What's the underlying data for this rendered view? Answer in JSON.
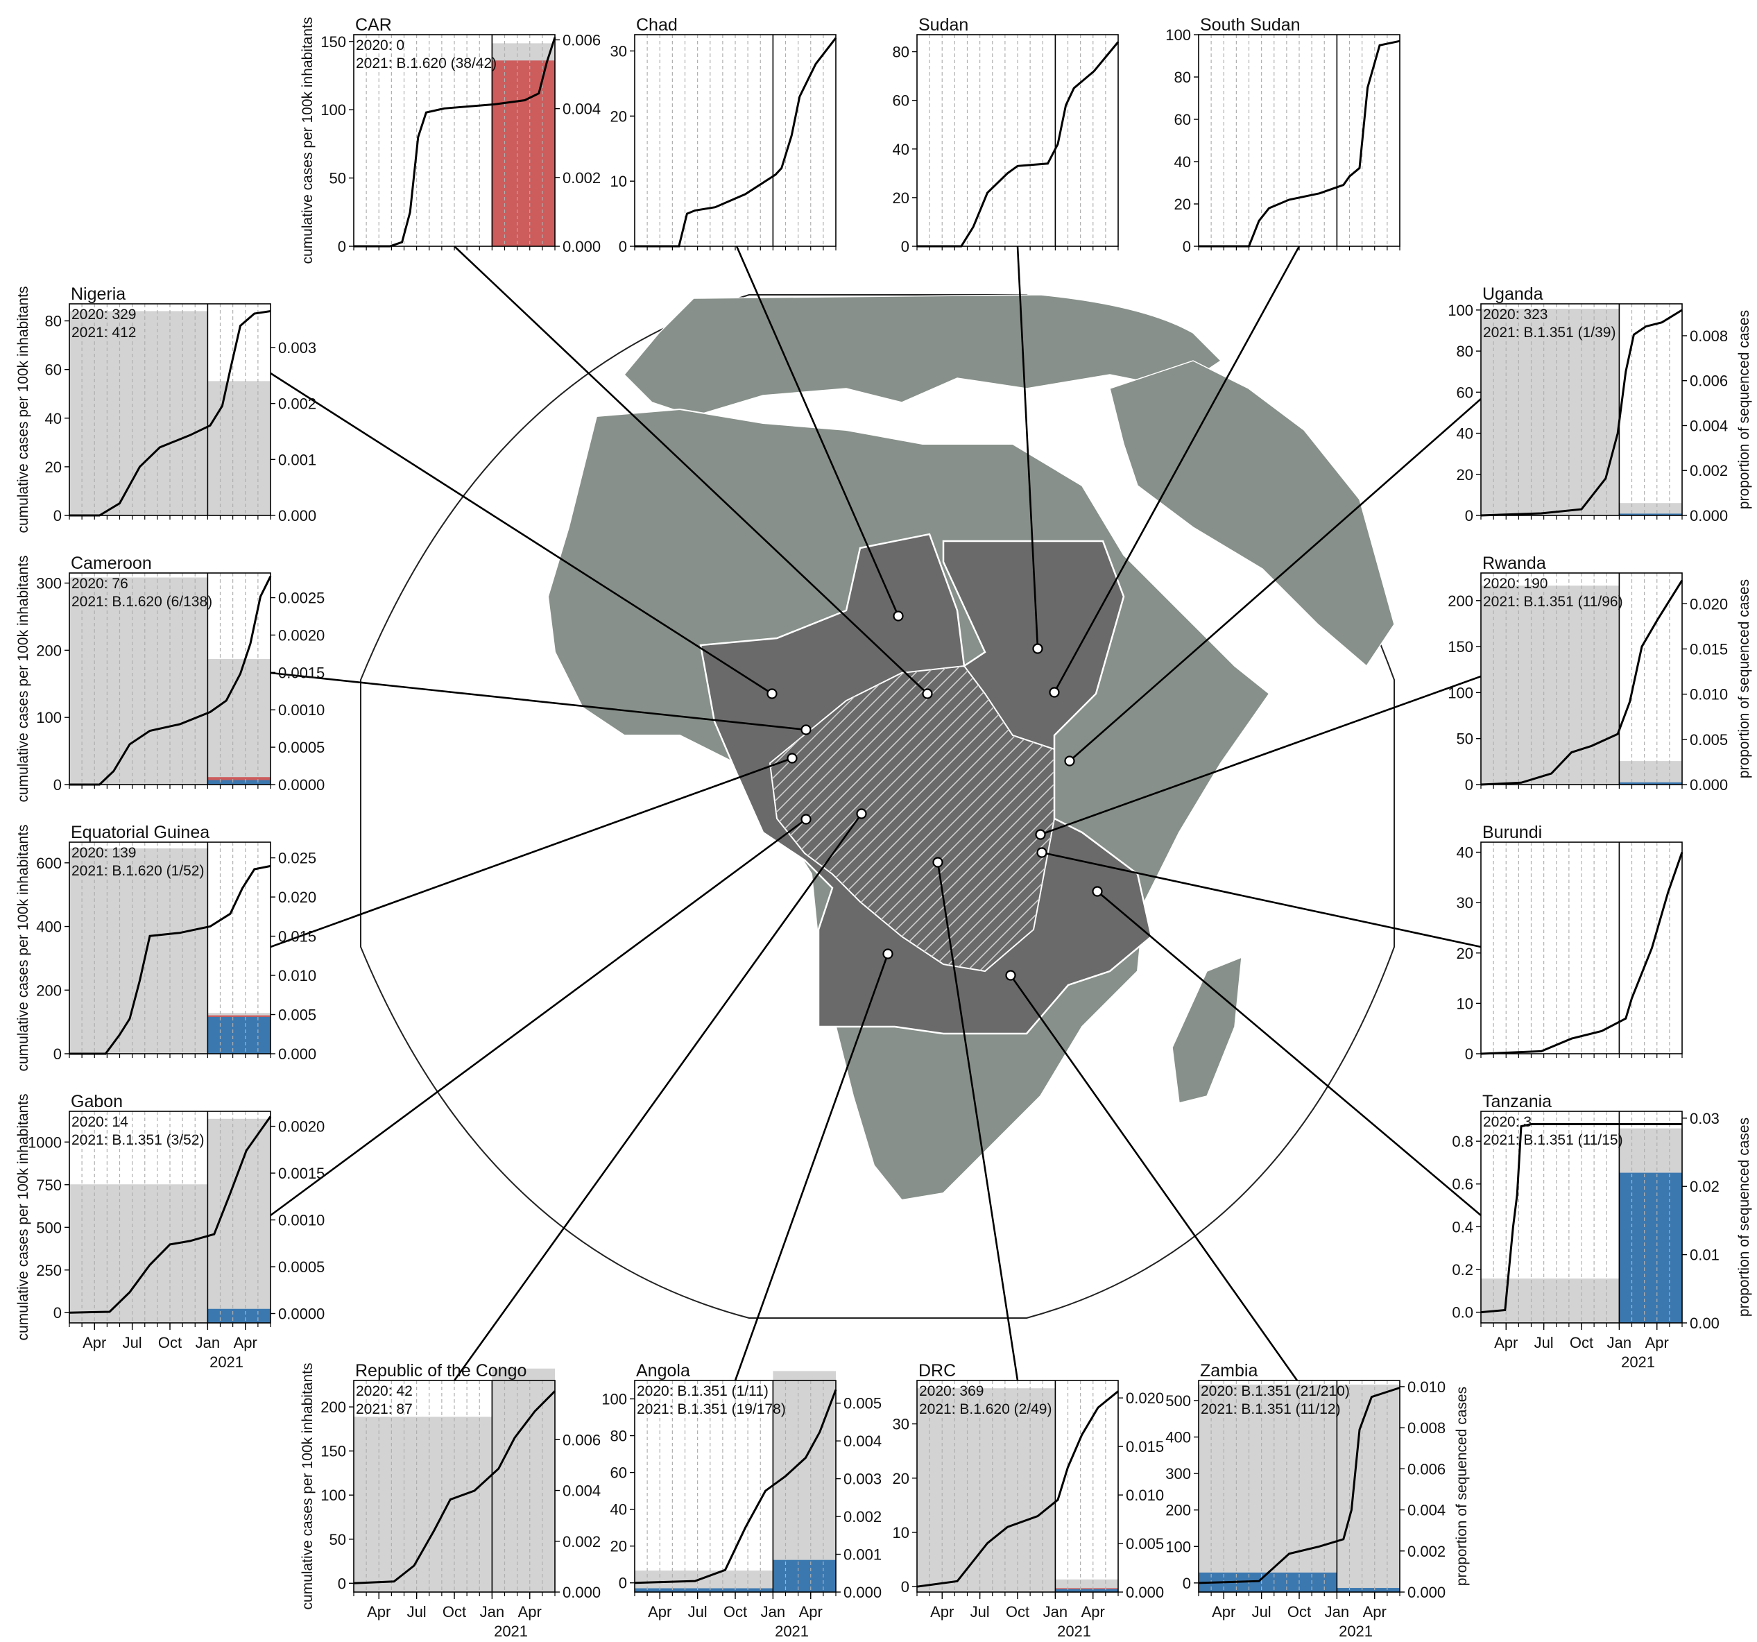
{
  "figure": {
    "colors": {
      "land": "#87908a",
      "highlight": "#6a6a6a",
      "border": "#ffffff",
      "bar_grey": "#d3d3d3",
      "red": "#cd5c5c",
      "blue": "#3b78b0",
      "line": "#000000"
    },
    "map_pins": [
      "Nigeria",
      "CAR",
      "Chad",
      "Sudan",
      "South Sudan",
      "Uganda",
      "Cameroon",
      "Rwanda",
      "Equatorial Guinea",
      "Burundi",
      "Gabon",
      "Tanzania",
      "Republic of the Congo",
      "Angola",
      "DRC",
      "Zambia"
    ]
  },
  "chart_data": [
    {
      "type": "line",
      "name": "CAR",
      "title": "CAR",
      "note": [
        "2020: 0",
        "2021: B.1.620 (38/42)"
      ],
      "ylabel": "cumulative cases per 100k inhabitants",
      "ylim": [
        0,
        155
      ],
      "yticks": [
        0,
        50,
        100,
        150
      ],
      "right_ylim": [
        0,
        0.00615
      ],
      "right_ticks": [
        "0.000",
        "0.002",
        "0.004",
        "0.006"
      ],
      "show_x": false,
      "bars": {
        "2020": {
          "grey": 0
        },
        "2021": {
          "grey": 0.0059,
          "red": 0.0054,
          "blue": 0
        }
      },
      "curve": [
        [
          0,
          0
        ],
        [
          0.18,
          0
        ],
        [
          0.24,
          3
        ],
        [
          0.28,
          25
        ],
        [
          0.32,
          80
        ],
        [
          0.36,
          98
        ],
        [
          0.45,
          101
        ],
        [
          0.7,
          104
        ],
        [
          0.85,
          107
        ],
        [
          0.92,
          112
        ],
        [
          0.96,
          135
        ],
        [
          1,
          153
        ]
      ]
    },
    {
      "type": "line",
      "name": "Chad",
      "title": "Chad",
      "note": [],
      "ylim": [
        0,
        32.5
      ],
      "yticks": [
        0,
        10,
        20,
        30
      ],
      "show_x": false,
      "curve": [
        [
          0,
          0
        ],
        [
          0.22,
          0
        ],
        [
          0.26,
          5
        ],
        [
          0.3,
          5.5
        ],
        [
          0.4,
          6
        ],
        [
          0.55,
          8
        ],
        [
          0.7,
          11
        ],
        [
          0.73,
          12
        ],
        [
          0.78,
          17
        ],
        [
          0.82,
          23
        ],
        [
          0.9,
          28
        ],
        [
          1,
          32
        ]
      ]
    },
    {
      "type": "line",
      "name": "Sudan",
      "title": "Sudan",
      "note": [],
      "ylim": [
        0,
        87
      ],
      "yticks": [
        0,
        20,
        40,
        60,
        80
      ],
      "show_x": false,
      "curve": [
        [
          0,
          0
        ],
        [
          0.22,
          0
        ],
        [
          0.28,
          8
        ],
        [
          0.35,
          22
        ],
        [
          0.45,
          30
        ],
        [
          0.5,
          33
        ],
        [
          0.65,
          34
        ],
        [
          0.7,
          42
        ],
        [
          0.74,
          58
        ],
        [
          0.78,
          65
        ],
        [
          0.88,
          72
        ],
        [
          1,
          84
        ]
      ]
    },
    {
      "type": "line",
      "name": "South Sudan",
      "title": "South Sudan",
      "note": [],
      "ylim": [
        0,
        100
      ],
      "yticks": [
        0,
        20,
        40,
        60,
        80,
        100
      ],
      "show_x": false,
      "curve": [
        [
          0,
          0
        ],
        [
          0.25,
          0
        ],
        [
          0.3,
          12
        ],
        [
          0.35,
          18
        ],
        [
          0.45,
          22
        ],
        [
          0.6,
          25
        ],
        [
          0.72,
          29
        ],
        [
          0.75,
          33
        ],
        [
          0.8,
          37
        ],
        [
          0.84,
          75
        ],
        [
          0.9,
          95
        ],
        [
          1,
          97
        ]
      ]
    },
    {
      "type": "line",
      "name": "Nigeria",
      "title": "Nigeria",
      "note": [
        "2020: 329",
        "2021: 412"
      ],
      "ylabel": "cumulative cases per 100k inhabitants",
      "ylim": [
        0,
        87
      ],
      "yticks": [
        0,
        20,
        40,
        60,
        80
      ],
      "right_ylim": [
        0,
        0.00378
      ],
      "right_ticks": [
        "0.000",
        "0.001",
        "0.002",
        "0.003"
      ],
      "show_x": false,
      "bars": {
        "2020": {
          "grey": 0.00365
        },
        "2021": {
          "grey": 0.0024,
          "red": 0,
          "blue": 0
        }
      },
      "curve": [
        [
          0,
          0
        ],
        [
          0.15,
          0
        ],
        [
          0.25,
          5
        ],
        [
          0.35,
          20
        ],
        [
          0.45,
          28
        ],
        [
          0.6,
          33
        ],
        [
          0.7,
          37
        ],
        [
          0.76,
          45
        ],
        [
          0.8,
          60
        ],
        [
          0.85,
          78
        ],
        [
          0.92,
          83
        ],
        [
          1,
          84
        ]
      ]
    },
    {
      "type": "line",
      "name": "Uganda",
      "title": "Uganda",
      "note": [
        "2020: 323",
        "2021: B.1.351 (1/39)"
      ],
      "ylabel": "proportion of sequenced cases",
      "ylabel_side": "right",
      "ylim": [
        0,
        103
      ],
      "yticks": [
        0,
        20,
        40,
        60,
        80,
        100
      ],
      "right_ylim": [
        0,
        0.00942
      ],
      "right_ticks": [
        "0.000",
        "0.002",
        "0.004",
        "0.006",
        "0.008"
      ],
      "show_x": false,
      "bars": {
        "2020": {
          "grey": 0.0092
        },
        "2021": {
          "grey": 0.00055,
          "red": 0,
          "blue": 8e-05
        }
      },
      "curve": [
        [
          0,
          0
        ],
        [
          0.3,
          1
        ],
        [
          0.5,
          3
        ],
        [
          0.62,
          18
        ],
        [
          0.68,
          40
        ],
        [
          0.72,
          70
        ],
        [
          0.76,
          88
        ],
        [
          0.82,
          92
        ],
        [
          0.9,
          94
        ],
        [
          1,
          100
        ]
      ]
    },
    {
      "type": "line",
      "name": "Cameroon",
      "title": "Cameroon",
      "note": [
        "2020: 76",
        "2021: B.1.620 (6/138)"
      ],
      "ylabel": "cumulative cases per 100k inhabitants",
      "ylim": [
        0,
        315
      ],
      "yticks": [
        0,
        100,
        200,
        300
      ],
      "right_ylim": [
        0,
        0.00283
      ],
      "right_ticks": [
        "0.0000",
        "0.0005",
        "0.0010",
        "0.0015",
        "0.0020",
        "0.0025"
      ],
      "show_x": false,
      "bars": {
        "2020": {
          "grey": 0.00277
        },
        "2021": {
          "grey": 0.00168,
          "red": 0.0001,
          "blue": 6e-05
        }
      },
      "curve": [
        [
          0,
          0
        ],
        [
          0.15,
          0
        ],
        [
          0.22,
          20
        ],
        [
          0.3,
          60
        ],
        [
          0.4,
          80
        ],
        [
          0.55,
          90
        ],
        [
          0.7,
          108
        ],
        [
          0.78,
          125
        ],
        [
          0.85,
          165
        ],
        [
          0.9,
          210
        ],
        [
          0.95,
          280
        ],
        [
          1,
          310
        ]
      ]
    },
    {
      "type": "line",
      "name": "Rwanda",
      "title": "Rwanda",
      "note": [
        "2020: 190",
        "2021: B.1.351 (11/96)"
      ],
      "ylabel": "proportion of sequenced cases",
      "ylabel_side": "right",
      "ylim": [
        0,
        230
      ],
      "yticks": [
        0,
        50,
        100,
        150,
        200
      ],
      "right_ylim": [
        0,
        0.0234
      ],
      "right_ticks": [
        "0.000",
        "0.005",
        "0.010",
        "0.015",
        "0.020"
      ],
      "show_x": false,
      "bars": {
        "2020": {
          "grey": 0.022
        },
        "2021": {
          "grey": 0.0026,
          "red": 0,
          "blue": 0.00025
        }
      },
      "curve": [
        [
          0,
          0
        ],
        [
          0.2,
          2
        ],
        [
          0.35,
          12
        ],
        [
          0.45,
          35
        ],
        [
          0.55,
          42
        ],
        [
          0.68,
          55
        ],
        [
          0.74,
          90
        ],
        [
          0.8,
          150
        ],
        [
          0.88,
          180
        ],
        [
          1,
          222
        ]
      ]
    },
    {
      "type": "line",
      "name": "Equatorial Guinea",
      "title": "Equatorial Guinea",
      "note": [
        "2020: 139",
        "2021: B.1.620 (1/52)"
      ],
      "ylabel": "cumulative cases per 100k inhabitants",
      "ylim": [
        0,
        665
      ],
      "yticks": [
        0,
        200,
        400,
        600
      ],
      "right_ylim": [
        0,
        0.027
      ],
      "right_ticks": [
        "0.000",
        "0.005",
        "0.010",
        "0.015",
        "0.020",
        "0.025"
      ],
      "show_x": false,
      "bars": {
        "2020": {
          "grey": 0.0262
        },
        "2021": {
          "grey": 0.0052,
          "red": 0.0049,
          "blue": 0.0047
        }
      },
      "curve": [
        [
          0,
          0
        ],
        [
          0.18,
          0
        ],
        [
          0.25,
          60
        ],
        [
          0.3,
          110
        ],
        [
          0.35,
          230
        ],
        [
          0.4,
          370
        ],
        [
          0.55,
          380
        ],
        [
          0.7,
          400
        ],
        [
          0.8,
          440
        ],
        [
          0.86,
          520
        ],
        [
          0.92,
          580
        ],
        [
          1,
          590
        ]
      ]
    },
    {
      "type": "line",
      "name": "Burundi",
      "title": "Burundi",
      "note": [],
      "ylim": [
        0,
        42
      ],
      "yticks": [
        0,
        10,
        20,
        30,
        40
      ],
      "show_x": false,
      "curve": [
        [
          0,
          0
        ],
        [
          0.3,
          0.5
        ],
        [
          0.45,
          3
        ],
        [
          0.6,
          4.5
        ],
        [
          0.72,
          7
        ],
        [
          0.75,
          11
        ],
        [
          0.85,
          21
        ],
        [
          0.93,
          32
        ],
        [
          1,
          40
        ]
      ]
    },
    {
      "type": "line",
      "name": "Gabon",
      "title": "Gabon",
      "note": [
        "2020: 14",
        "2021: B.1.351 (3/52)"
      ],
      "ylabel": "cumulative cases per 100k inhabitants",
      "ylim": [
        -60,
        1180
      ],
      "yticks": [
        0,
        250,
        500,
        750,
        1000
      ],
      "right_ylim": [
        -0.0001,
        0.00216
      ],
      "right_ticks": [
        "0.0000",
        "0.0005",
        "0.0010",
        "0.0015",
        "0.0020"
      ],
      "show_x": true,
      "xticks": [
        "Apr",
        "Jul",
        "Oct",
        "Jan",
        "Apr"
      ],
      "year": "2021",
      "bars": {
        "2020": {
          "grey": 0.00138
        },
        "2021": {
          "grey": 0.00208,
          "red": 0,
          "blue": 5e-05
        }
      },
      "curve": [
        [
          0,
          0
        ],
        [
          0.2,
          5
        ],
        [
          0.3,
          120
        ],
        [
          0.4,
          280
        ],
        [
          0.5,
          400
        ],
        [
          0.6,
          420
        ],
        [
          0.72,
          460
        ],
        [
          0.8,
          700
        ],
        [
          0.88,
          950
        ],
        [
          1,
          1150
        ]
      ]
    },
    {
      "type": "line",
      "name": "Tanzania",
      "title": "Tanzania",
      "note": [
        "2020: 3",
        "2021: B.1.351 (11/15)"
      ],
      "ylabel": "proportion of sequenced cases",
      "ylabel_side": "right",
      "ylim": [
        -0.05,
        0.94
      ],
      "yticks": [
        "0.0",
        "0.2",
        "0.4",
        "0.6",
        "0.8"
      ],
      "right_ylim": [
        0,
        0.031
      ],
      "right_ticks": [
        "0.00",
        "0.01",
        "0.02",
        "0.03"
      ],
      "show_x": true,
      "xticks": [
        "Apr",
        "Jul",
        "Oct",
        "Jan",
        "Apr"
      ],
      "year": "2021",
      "bars": {
        "2020": {
          "grey": 0.0065
        },
        "2021": {
          "grey": 0.0285,
          "red": 0,
          "blue": 0.022
        }
      },
      "curve": [
        [
          0,
          0
        ],
        [
          0.12,
          0.01
        ],
        [
          0.16,
          0.4
        ],
        [
          0.18,
          0.55
        ],
        [
          0.2,
          0.87
        ],
        [
          0.25,
          0.88
        ],
        [
          1,
          0.88
        ]
      ]
    },
    {
      "type": "line",
      "name": "Republic of the Congo",
      "title": "Republic of the Congo",
      "note": [
        "2020: 42",
        "2021: 87"
      ],
      "ylabel": "cumulative cases per 100k inhabitants",
      "ylim": [
        -10,
        230
      ],
      "yticks": [
        0,
        50,
        100,
        150,
        200
      ],
      "right_ylim": [
        0,
        0.00833
      ],
      "right_ticks": [
        "0.000",
        "0.002",
        "0.004",
        "0.006"
      ],
      "show_x": true,
      "xticks": [
        "Apr",
        "Jul",
        "Oct",
        "Jan",
        "Apr"
      ],
      "year": "2021",
      "bars": {
        "2020": {
          "grey": 0.0069
        },
        "2021": {
          "grey": 0.0088,
          "red": 0,
          "blue": 0
        }
      },
      "curve": [
        [
          0,
          0
        ],
        [
          0.2,
          2
        ],
        [
          0.3,
          20
        ],
        [
          0.4,
          60
        ],
        [
          0.48,
          95
        ],
        [
          0.6,
          105
        ],
        [
          0.72,
          130
        ],
        [
          0.8,
          165
        ],
        [
          0.9,
          195
        ],
        [
          1,
          218
        ]
      ]
    },
    {
      "type": "line",
      "name": "Angola",
      "title": "Angola",
      "note": [
        "2020: B.1.351 (1/11)",
        "2021: B.1.351 (19/178)"
      ],
      "ylim": [
        -5,
        110
      ],
      "yticks": [
        0,
        20,
        40,
        60,
        80,
        100
      ],
      "right_ylim": [
        0,
        0.0056
      ],
      "right_ticks": [
        "0.000",
        "0.001",
        "0.002",
        "0.003",
        "0.004",
        "0.005"
      ],
      "show_x": true,
      "xticks": [
        "Apr",
        "Jul",
        "Oct",
        "Jan",
        "Apr"
      ],
      "year": "2021",
      "bars": {
        "2020": {
          "grey": 0.00057,
          "red": 0,
          "blue": 0.0001
        },
        "2021": {
          "grey": 0.00585,
          "red": 0,
          "blue": 0.00085
        }
      },
      "curve": [
        [
          0,
          0
        ],
        [
          0.3,
          1
        ],
        [
          0.45,
          7
        ],
        [
          0.55,
          30
        ],
        [
          0.65,
          50
        ],
        [
          0.75,
          58
        ],
        [
          0.85,
          68
        ],
        [
          0.92,
          82
        ],
        [
          1,
          105
        ]
      ]
    },
    {
      "type": "line",
      "name": "DRC",
      "title": "DRC",
      "note": [
        "2020: 369",
        "2021: B.1.620 (2/49)"
      ],
      "ylim": [
        -1,
        38
      ],
      "yticks": [
        0,
        10,
        20,
        30
      ],
      "right_ylim": [
        0,
        0.0218
      ],
      "right_ticks": [
        "0.000",
        "0.005",
        "0.010",
        "0.015",
        "0.020"
      ],
      "show_x": true,
      "xticks": [
        "Apr",
        "Jul",
        "Oct",
        "Jan",
        "Apr"
      ],
      "year": "2021",
      "bars": {
        "2020": {
          "grey": 0.021
        },
        "2021": {
          "grey": 0.0013,
          "red": 0.0004,
          "blue": 0.0003
        }
      },
      "curve": [
        [
          0,
          0
        ],
        [
          0.2,
          1
        ],
        [
          0.35,
          8
        ],
        [
          0.45,
          11
        ],
        [
          0.6,
          13
        ],
        [
          0.7,
          16
        ],
        [
          0.75,
          22
        ],
        [
          0.82,
          28
        ],
        [
          0.9,
          33
        ],
        [
          1,
          36
        ]
      ]
    },
    {
      "type": "line",
      "name": "Zambia",
      "title": "Zambia",
      "note": [
        "2020: B.1.351 (21/210)",
        "2021: B.1.351 (11/12)"
      ],
      "ylabel": "proportion of sequenced cases",
      "ylabel_side": "right",
      "ylim": [
        -25,
        555
      ],
      "yticks": [
        0,
        100,
        200,
        300,
        400,
        500
      ],
      "right_ylim": [
        0,
        0.0103
      ],
      "right_ticks": [
        "0.000",
        "0.002",
        "0.004",
        "0.006",
        "0.008",
        "0.010"
      ],
      "show_x": true,
      "xticks": [
        "Apr",
        "Jul",
        "Oct",
        "Jan",
        "Apr"
      ],
      "year": "2021",
      "bars": {
        "2020": {
          "grey": 0.0101,
          "red": 0,
          "blue": 0.00095
        },
        "2021": {
          "grey": 0.0101,
          "red": 0,
          "blue": 0.0002
        }
      },
      "curve": [
        [
          0,
          0
        ],
        [
          0.3,
          5
        ],
        [
          0.45,
          80
        ],
        [
          0.6,
          100
        ],
        [
          0.72,
          120
        ],
        [
          0.76,
          200
        ],
        [
          0.8,
          420
        ],
        [
          0.86,
          510
        ],
        [
          1,
          535
        ]
      ]
    }
  ]
}
